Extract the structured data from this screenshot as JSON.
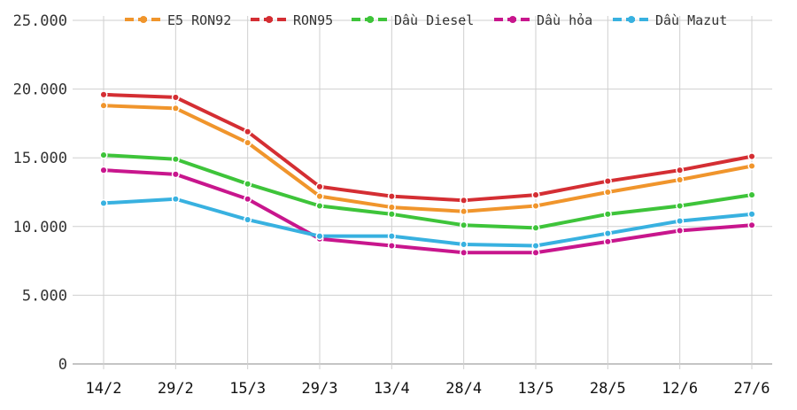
{
  "chart_data": {
    "type": "line",
    "categories": [
      "14/2",
      "29/2",
      "15/3",
      "29/3",
      "13/4",
      "28/4",
      "13/5",
      "28/5",
      "12/6",
      "27/6"
    ],
    "y_ticks": [
      "0",
      "5.000",
      "10.000",
      "15.000",
      "20.000",
      "25.000"
    ],
    "ylim": [
      0,
      25000
    ],
    "grid": true,
    "legend_position": "top",
    "series": [
      {
        "name": "E5 RON92",
        "color": "#f0952c",
        "values": [
          18800,
          18600,
          16100,
          12200,
          11400,
          11100,
          11500,
          12500,
          13400,
          14400
        ]
      },
      {
        "name": "RON95",
        "color": "#d42e33",
        "values": [
          19600,
          19400,
          16900,
          12900,
          12200,
          11900,
          12300,
          13300,
          14100,
          15100
        ]
      },
      {
        "name": "Dầu Diesel",
        "color": "#3ec43a",
        "values": [
          15200,
          14900,
          13100,
          11500,
          10900,
          10100,
          9900,
          10900,
          11500,
          12300
        ]
      },
      {
        "name": "Dầu hỏa",
        "color": "#c8168d",
        "values": [
          14100,
          13800,
          12000,
          9100,
          8600,
          8100,
          8100,
          8900,
          9700,
          10100
        ]
      },
      {
        "name": "Dầu Mazut",
        "color": "#38b1e0",
        "values": [
          11700,
          12000,
          10500,
          9300,
          9300,
          8700,
          8600,
          9500,
          10400,
          10900
        ]
      }
    ]
  }
}
